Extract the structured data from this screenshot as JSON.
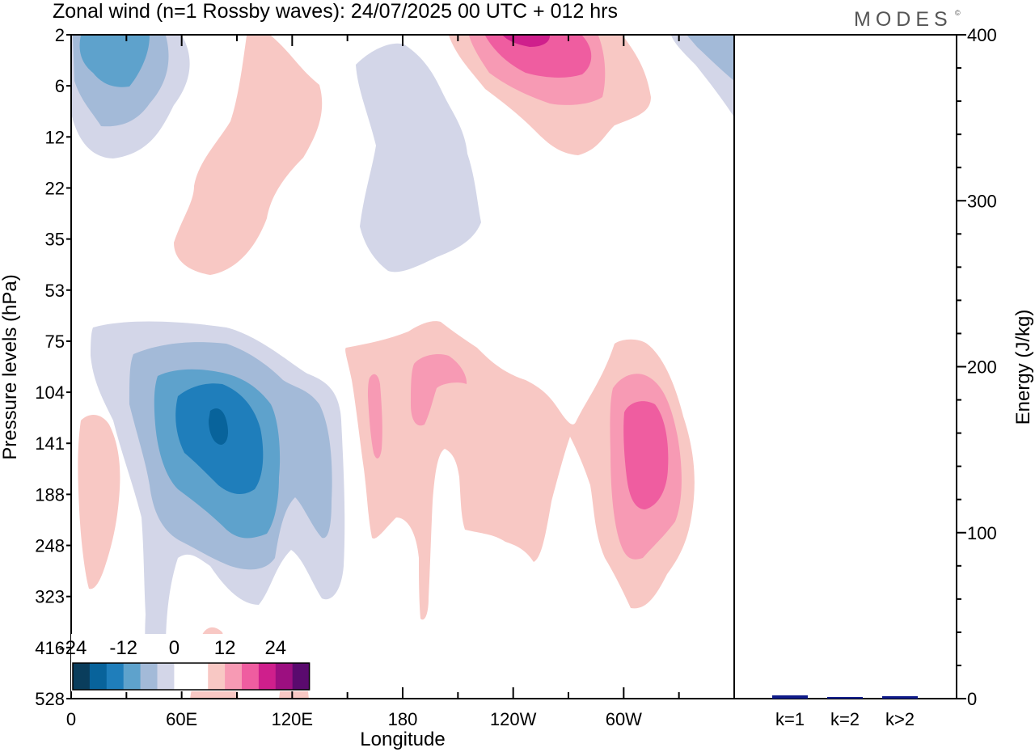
{
  "header": {
    "title": "Zonal wind (n=1 Rossby waves):  24/07/2025  00 UTC  + 012 hrs",
    "brand": "MODES",
    "brand_mark": "©"
  },
  "colors": {
    "neg": [
      "#0a3d5c",
      "#08639b",
      "#1f7ebb",
      "#5ea2cc",
      "#a3bad8",
      "#d3d6e8"
    ],
    "zero": "#ffffff",
    "pos": [
      "#f8c8c4",
      "#f79ab4",
      "#ef5da0",
      "#cf1f8c",
      "#9c0f80",
      "#5a0a6e"
    ],
    "bar": "#101c8a"
  },
  "chart_data": [
    {
      "type": "contour",
      "title": "Zonal wind (n=1 Rossby waves):  24/07/2025  00 UTC  + 012 hrs",
      "xlabel": "Longitude",
      "ylabel": "Pressure levels (hPa)",
      "x_ticks": [
        "0",
        "60E",
        "120E",
        "180",
        "120W",
        "60W"
      ],
      "x_tick_degrees": [
        0,
        60,
        120,
        180,
        240,
        300
      ],
      "x_range_degrees": [
        0,
        360
      ],
      "y_levels": [
        "2",
        "6",
        "12",
        "22",
        "35",
        "53",
        "75",
        "104",
        "141",
        "188",
        "248",
        "323",
        "416",
        "528"
      ],
      "colorbar": {
        "levels": [
          -30,
          -24,
          -18,
          -12,
          -6,
          -3,
          3,
          6,
          12,
          18,
          24,
          30
        ],
        "labels": [
          "-24",
          "-12",
          "0",
          "12",
          "24"
        ],
        "label_values": [
          -24,
          -12,
          0,
          12,
          24
        ]
      },
      "features": [
        {
          "name": "easterly core upper-left",
          "level": -12,
          "lon": [
            5,
            40
          ],
          "p": [
            "2",
            "12"
          ]
        },
        {
          "name": "westerly band",
          "level": 3,
          "lon": [
            55,
            130
          ],
          "p": [
            "2",
            "35"
          ]
        },
        {
          "name": "easterly column",
          "level": -3,
          "lon": [
            160,
            220
          ],
          "p": [
            "2",
            "35"
          ]
        },
        {
          "name": "westerly max upper",
          "level": 18,
          "lon": [
            220,
            300
          ],
          "p": [
            "2",
            "12"
          ]
        },
        {
          "name": "easterly jet",
          "level": -30,
          "lon": [
            20,
            150
          ],
          "p": [
            "75",
            "416"
          ]
        },
        {
          "name": "westerly center",
          "level": 6,
          "lon": [
            150,
            270
          ],
          "p": [
            "75",
            "323"
          ]
        },
        {
          "name": "westerly max lower",
          "level": 12,
          "lon": [
            280,
            330
          ],
          "p": [
            "75",
            "323"
          ]
        },
        {
          "name": "westerly patch left",
          "level": 3,
          "lon": [
            0,
            25
          ],
          "p": [
            "141",
            "323"
          ]
        }
      ]
    },
    {
      "type": "bar",
      "categories": [
        "k=1",
        "k=2",
        "k>2"
      ],
      "values": [
        2,
        1,
        1.5
      ],
      "ylabel": "Energy (J/kg)",
      "ylim": [
        0,
        400
      ],
      "y_ticks": [
        0,
        100,
        200,
        300,
        400
      ],
      "y_tick_labels": [
        "0",
        "100",
        "200",
        "300",
        "400"
      ]
    }
  ]
}
